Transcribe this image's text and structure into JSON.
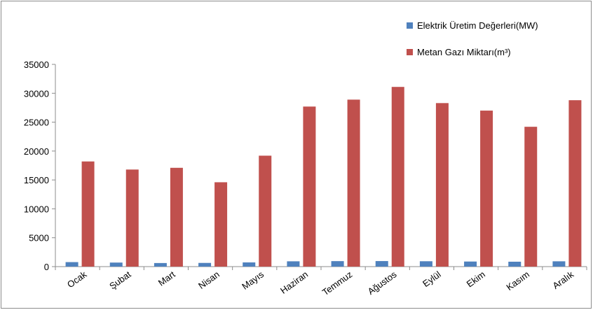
{
  "chart_data": {
    "type": "bar",
    "categories": [
      "Ocak",
      "Şubat",
      "Mart",
      "Nisan",
      "Mayıs",
      "Haziran",
      "Temmuz",
      "Ağustos",
      "Eylül",
      "Ekim",
      "Kasım",
      "Aralık"
    ],
    "series": [
      {
        "name": "Elektrik Üretim Değerleri(MW)",
        "color": "#4f81bd",
        "values": [
          780,
          700,
          620,
          640,
          730,
          920,
          950,
          960,
          930,
          880,
          850,
          920
        ]
      },
      {
        "name": "Metan Gazı Miktarı(m³)",
        "color": "#c0504d",
        "values": [
          18200,
          16800,
          17100,
          14600,
          19200,
          27700,
          28900,
          31100,
          28300,
          27000,
          24200,
          28800
        ]
      }
    ],
    "ylim": [
      0,
      35000
    ],
    "yticks": [
      0,
      5000,
      10000,
      15000,
      20000,
      25000,
      30000,
      35000
    ],
    "grid": false,
    "legend_position": "top-right",
    "title": "",
    "xlabel": "",
    "ylabel": ""
  }
}
